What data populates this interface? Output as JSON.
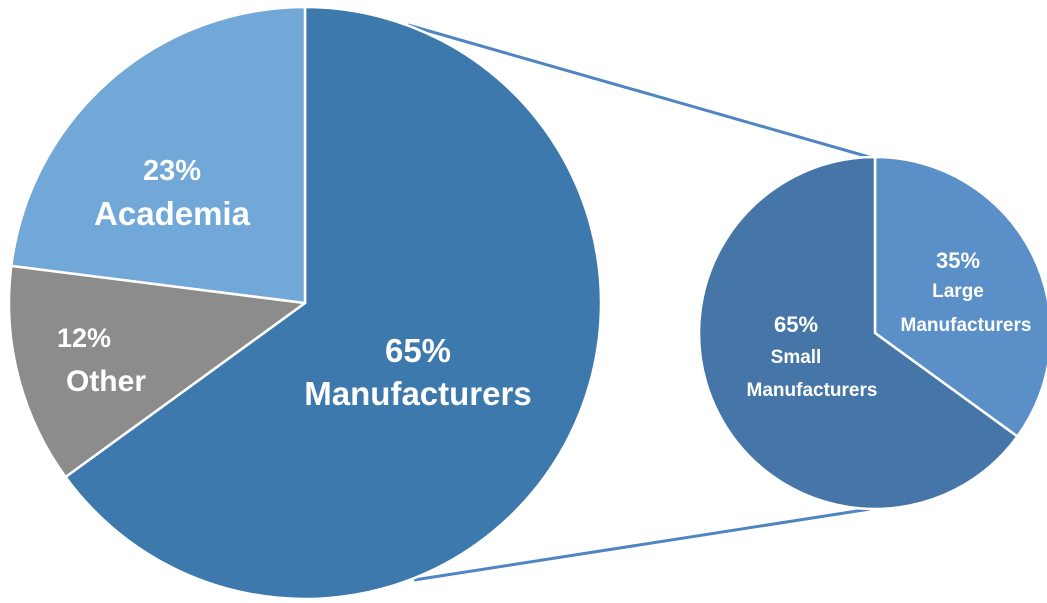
{
  "chart_data": [
    {
      "type": "pie",
      "title": "",
      "start_angle_deg": 0,
      "direction": "clockwise",
      "slices": [
        {
          "label": "Manufacturers",
          "value_label": "65%",
          "value": 65,
          "color": "#3e79ad"
        },
        {
          "label": "Other",
          "value_label": "12%",
          "value": 12,
          "color": "#8c8c8c"
        },
        {
          "label": "Academia",
          "value_label": "23%",
          "value": 23,
          "color": "#72a8d8"
        }
      ]
    },
    {
      "type": "pie",
      "title": "",
      "breakdown_of": "Manufacturers",
      "start_angle_deg": 0,
      "direction": "clockwise",
      "slices": [
        {
          "label": "Large",
          "label_line2": "Manufacturers",
          "value_label": "35%",
          "value": 35,
          "color": "#5a8fc7"
        },
        {
          "label": "Small",
          "label_line2": "Manufacturers",
          "value_label": "65%",
          "value": 65,
          "color": "#4676a8"
        }
      ]
    }
  ]
}
